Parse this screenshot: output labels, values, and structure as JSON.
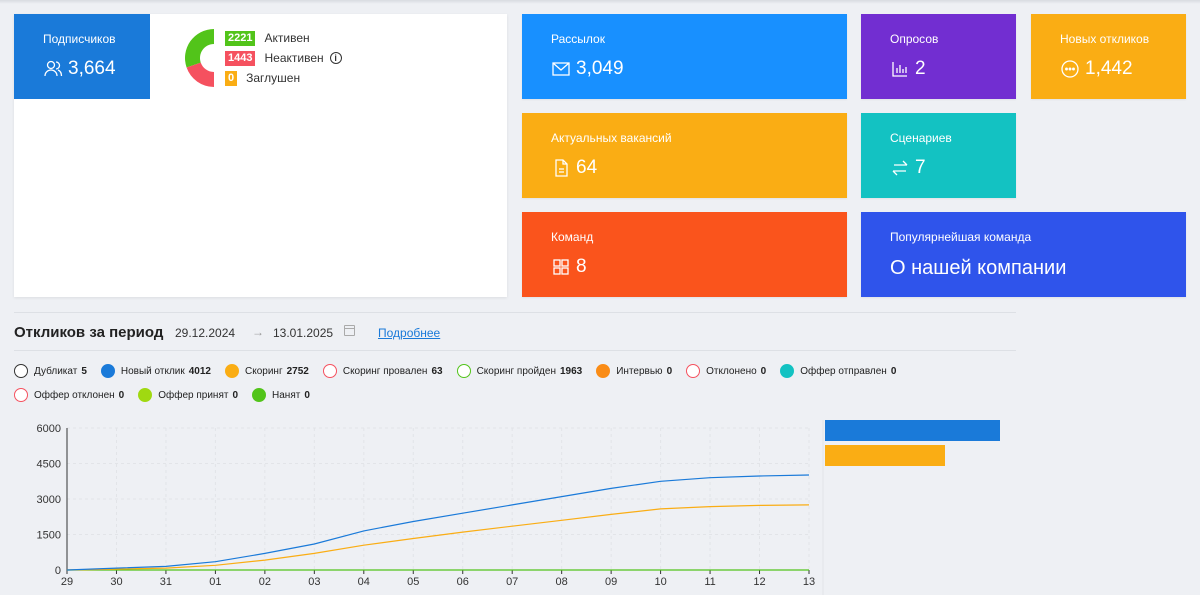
{
  "subscribers": {
    "title": "Подписчиков",
    "value": "3,664",
    "icon": "users-icon",
    "color": "#1a7ad9",
    "legend": [
      {
        "count": "2221",
        "label": "Активен",
        "color": "#52c41a"
      },
      {
        "count": "1443",
        "label": "Неактивен",
        "color": "#f5515f",
        "info": "i"
      },
      {
        "count": "0",
        "label": "Заглушен",
        "color": "#faad14"
      }
    ]
  },
  "cards": {
    "mailings": {
      "title": "Рассылок",
      "value": "3,049",
      "icon": "mail-icon",
      "color": "#1890ff"
    },
    "polls": {
      "title": "Опросов",
      "value": "2",
      "icon": "bar-chart-icon",
      "color": "#722ed1"
    },
    "new_responses": {
      "title": "Новых откликов",
      "value": "1,442",
      "icon": "chat-icon",
      "color": "#faad14"
    },
    "vacancies": {
      "title": "Актуальных вакансий",
      "value": "64",
      "icon": "document-icon",
      "color": "#faad14"
    },
    "scenarios": {
      "title": "Сценариев",
      "value": "7",
      "icon": "swap-icon",
      "color": "#13c2c2"
    },
    "commands": {
      "title": "Команд",
      "value": "8",
      "icon": "grid-icon",
      "color": "#fa541c"
    },
    "popular_command": {
      "title": "Популярнейшая команда",
      "value": "О нашей компании",
      "color": "#2f54eb"
    }
  },
  "period": {
    "title": "Откликов за период",
    "date_from": "29.12.2024",
    "arrow": "→",
    "date_to": "13.01.2025",
    "more_link": "Подробнее"
  },
  "legend": [
    {
      "label": "Дубликат",
      "count": "5",
      "color": "#333333",
      "filled": false
    },
    {
      "label": "Новый отклик",
      "count": "4012",
      "color": "#1a7ad9",
      "filled": true
    },
    {
      "label": "Скоринг",
      "count": "2752",
      "color": "#faad14",
      "filled": true
    },
    {
      "label": "Скоринг провален",
      "count": "63",
      "color": "#f5515f",
      "filled": false
    },
    {
      "label": "Скоринг пройден",
      "count": "1963",
      "color": "#52c41a",
      "filled": false
    },
    {
      "label": "Интервью",
      "count": "0",
      "color": "#fa8c16",
      "filled": true
    },
    {
      "label": "Отклонено",
      "count": "0",
      "color": "#f5515f",
      "filled": false
    },
    {
      "label": "Оффер отправлен",
      "count": "0",
      "color": "#13c2c2",
      "filled": true
    },
    {
      "label": "Оффер отклонен",
      "count": "0",
      "color": "#f5515f",
      "filled": false
    },
    {
      "label": "Оффер принят",
      "count": "0",
      "color": "#a0d911",
      "filled": true
    },
    {
      "label": "Нанят",
      "count": "0",
      "color": "#52c41a",
      "filled": true
    }
  ],
  "chart_data": {
    "type": "line",
    "x": [
      "29",
      "30",
      "31",
      "01",
      "02",
      "03",
      "04",
      "05",
      "06",
      "07",
      "08",
      "09",
      "10",
      "11",
      "12",
      "13"
    ],
    "ylim": [
      0,
      6000
    ],
    "yticks": [
      "0",
      "1500",
      "3000",
      "4500",
      "6000"
    ],
    "grid": true,
    "series": [
      {
        "name": "Новый отклик",
        "color": "#1a7ad9",
        "values": [
          0,
          80,
          150,
          350,
          700,
          1100,
          1650,
          2050,
          2400,
          2750,
          3100,
          3450,
          3750,
          3900,
          3970,
          4012
        ]
      },
      {
        "name": "Скоринг",
        "color": "#faad14",
        "values": [
          0,
          40,
          80,
          200,
          420,
          700,
          1050,
          1330,
          1600,
          1850,
          2100,
          2350,
          2580,
          2680,
          2730,
          2752
        ]
      },
      {
        "name": "Нанят",
        "color": "#52c41a",
        "values": [
          0,
          0,
          0,
          0,
          0,
          0,
          0,
          0,
          0,
          0,
          0,
          0,
          0,
          0,
          0,
          0
        ]
      }
    ],
    "bars": [
      {
        "name": "Новый отклик",
        "value": 4012,
        "color": "#1a7ad9"
      },
      {
        "name": "Скоринг",
        "value": 2752,
        "color": "#faad14"
      }
    ]
  }
}
